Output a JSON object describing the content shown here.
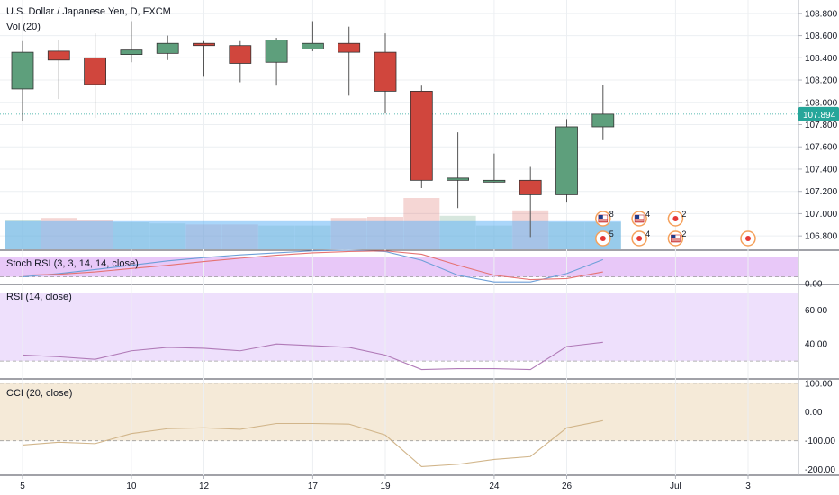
{
  "header": {
    "symbol_title": "U.S. Dollar / Japanese Yen, D, FXCM",
    "volume_label": "Vol (20)"
  },
  "last_price": {
    "label": "107.894",
    "value": 107.894,
    "color": "#26a69a"
  },
  "colors": {
    "up": "#5e9f7c",
    "down": "#d0463d",
    "grid": "#eceff2",
    "vol_band": "#64b5f6",
    "stoch_band": "#e8c8f8",
    "rsi_band": "#eee0fc",
    "cci_band": "#f5ead8",
    "rsi_line": "#b07ab7",
    "cci_line": "#d1b58a",
    "stoch_k": "#6d9fd8",
    "stoch_d": "#e57373"
  },
  "chart_data": [
    {
      "type": "candlestick",
      "title": "U.S. Dollar / Japanese Yen, D, FXCM",
      "yaxis_ticks": [
        "106.800",
        "107.000",
        "107.200",
        "107.400",
        "107.600",
        "107.800",
        "108.000",
        "108.200",
        "108.400",
        "108.600",
        "108.800"
      ],
      "ylim": [
        106.68,
        108.92
      ],
      "x_tick_labels": [
        {
          "label": "5",
          "index": 0
        },
        {
          "label": "10",
          "index": 3
        },
        {
          "label": "12",
          "index": 5
        },
        {
          "label": "17",
          "index": 8
        },
        {
          "label": "19",
          "index": 10
        },
        {
          "label": "24",
          "index": 13
        },
        {
          "label": "26",
          "index": 15
        },
        {
          "label": "Jul",
          "index": 18
        },
        {
          "label": "3",
          "index": 20
        }
      ],
      "candles": [
        {
          "date": "Jun 5",
          "open": 108.12,
          "high": 108.55,
          "low": 107.83,
          "close": 108.45
        },
        {
          "date": "Jun 6",
          "open": 108.46,
          "high": 108.56,
          "low": 108.03,
          "close": 108.38
        },
        {
          "date": "Jun 7",
          "open": 108.4,
          "high": 108.62,
          "low": 107.86,
          "close": 108.16
        },
        {
          "date": "Jun 10",
          "open": 108.43,
          "high": 108.73,
          "low": 108.36,
          "close": 108.47
        },
        {
          "date": "Jun 11",
          "open": 108.44,
          "high": 108.6,
          "low": 108.38,
          "close": 108.53
        },
        {
          "date": "Jun 12",
          "open": 108.53,
          "high": 108.55,
          "low": 108.23,
          "close": 108.51
        },
        {
          "date": "Jun 13",
          "open": 108.51,
          "high": 108.55,
          "low": 108.18,
          "close": 108.35
        },
        {
          "date": "Jun 14",
          "open": 108.36,
          "high": 108.58,
          "low": 108.15,
          "close": 108.56
        },
        {
          "date": "Jun 17",
          "open": 108.48,
          "high": 108.73,
          "low": 108.46,
          "close": 108.53
        },
        {
          "date": "Jun 18",
          "open": 108.53,
          "high": 108.68,
          "low": 108.06,
          "close": 108.45
        },
        {
          "date": "Jun 19",
          "open": 108.45,
          "high": 108.62,
          "low": 107.9,
          "close": 108.1
        },
        {
          "date": "Jun 20",
          "open": 108.1,
          "high": 108.15,
          "low": 107.23,
          "close": 107.3
        },
        {
          "date": "Jun 21",
          "open": 107.3,
          "high": 107.73,
          "low": 107.05,
          "close": 107.32
        },
        {
          "date": "Jun 24",
          "open": 107.3,
          "high": 107.54,
          "low": 107.28,
          "close": 107.3
        },
        {
          "date": "Jun 25",
          "open": 107.3,
          "high": 107.42,
          "low": 106.79,
          "close": 107.17
        },
        {
          "date": "Jun 26",
          "open": 107.17,
          "high": 107.85,
          "low": 107.1,
          "close": 107.78
        },
        {
          "date": "Jun 27",
          "open": 107.78,
          "high": 108.16,
          "low": 107.66,
          "close": 107.894
        }
      ],
      "events": [
        {
          "index": 16,
          "row": "upper",
          "kind": "flag",
          "count": "8"
        },
        {
          "index": 16,
          "row": "lower",
          "kind": "dot",
          "count": "5"
        },
        {
          "index": 17,
          "row": "upper",
          "kind": "flag",
          "count": "4"
        },
        {
          "index": 17,
          "row": "lower",
          "kind": "dot",
          "count": "4"
        },
        {
          "index": 18,
          "row": "upper",
          "kind": "dot",
          "count": "2"
        },
        {
          "index": 18,
          "row": "lower",
          "kind": "flag",
          "count": "2"
        },
        {
          "index": 20,
          "row": "lower",
          "kind": "dot",
          "count": ""
        }
      ]
    },
    {
      "type": "bar",
      "title": "Vol (20)",
      "volume": [
        0.55,
        0.58,
        0.55,
        0.5,
        0.48,
        0.46,
        0.46,
        0.44,
        0.44,
        0.58,
        0.6,
        0.95,
        0.62,
        0.44,
        0.72,
        0.5,
        0.5
      ],
      "volume_ma": 0.52
    },
    {
      "type": "line",
      "title": "Stoch RSI (3, 3, 14, 14, close)",
      "yaxis_ticks": [
        "0.00"
      ],
      "ylim": [
        0,
        100
      ],
      "bands": [
        20,
        80
      ],
      "series": [
        {
          "key": "k",
          "values": [
            20,
            30,
            42,
            55,
            68,
            78,
            86,
            92,
            98,
            100,
            96,
            70,
            25,
            5,
            5,
            30,
            72
          ]
        },
        {
          "key": "d",
          "values": [
            25,
            28,
            35,
            45,
            55,
            66,
            76,
            85,
            92,
            96,
            98,
            88,
            55,
            25,
            12,
            15,
            35
          ]
        }
      ]
    },
    {
      "type": "line",
      "title": "RSI (14, close)",
      "yaxis_ticks": [
        "40.00",
        "60.00"
      ],
      "ylim": [
        20,
        75
      ],
      "bands": [
        30,
        70
      ],
      "series": [
        {
          "key": "rsi",
          "values": [
            33.5,
            32.5,
            31.0,
            36.0,
            38.0,
            37.5,
            36.0,
            40.0,
            39.0,
            38.0,
            33.5,
            25.0,
            25.5,
            25.5,
            25.0,
            38.5,
            41.0
          ]
        }
      ]
    },
    {
      "type": "line",
      "title": "CCI (20, close)",
      "yaxis_ticks": [
        "-200.00",
        "-100.00",
        "0.00",
        "100.00"
      ],
      "ylim": [
        -220,
        115
      ],
      "bands": [
        -100,
        100
      ],
      "series": [
        {
          "key": "cci",
          "values": [
            -115,
            -105,
            -110,
            -75,
            -58,
            -55,
            -60,
            -40,
            -40,
            -42,
            -80,
            -190,
            -182,
            -165,
            -155,
            -55,
            -30
          ]
        }
      ]
    }
  ]
}
